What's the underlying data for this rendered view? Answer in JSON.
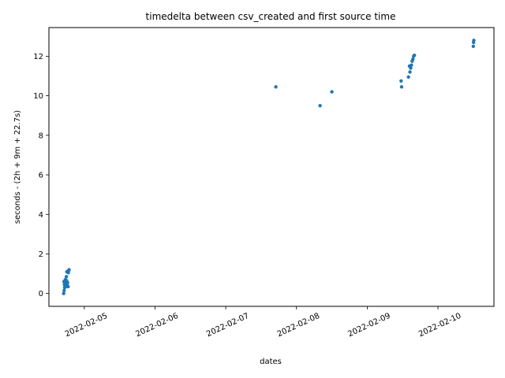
{
  "chart_data": {
    "type": "scatter",
    "title": "timedelta between csv_created and first source time",
    "xlabel": "dates",
    "ylabel": "seconds - (2h + 9m + 22.7s)",
    "x_ticks": [
      "2022-02-05",
      "2022-02-06",
      "2022-02-07",
      "2022-02-08",
      "2022-02-09",
      "2022-02-10"
    ],
    "y_ticks": [
      0,
      2,
      4,
      6,
      8,
      10,
      12
    ],
    "xlim": [
      "2022-02-04T12:00",
      "2022-02-10T19:00"
    ],
    "ylim": [
      -0.65,
      13.45
    ],
    "grid": false,
    "color": "#1f77b4",
    "series": [
      {
        "x": [
          "2022-02-04T17:00",
          "2022-02-04T17:10",
          "2022-02-04T17:20",
          "2022-02-04T17:30",
          "2022-02-04T17:15",
          "2022-02-04T17:25",
          "2022-02-04T17:40",
          "2022-02-04T17:50",
          "2022-02-04T18:00",
          "2022-02-04T17:35",
          "2022-02-04T17:45",
          "2022-02-04T18:10",
          "2022-02-04T18:20",
          "2022-02-04T18:30",
          "2022-02-04T17:55",
          "2022-02-04T18:05",
          "2022-02-04T18:40",
          "2022-02-04T18:50",
          "2022-02-04T18:35",
          "2022-02-04T17:05",
          "2022-02-04T18:15",
          "2022-02-07T17:00",
          "2022-02-08T08:00",
          "2022-02-08T12:00",
          "2022-02-09T11:30",
          "2022-02-09T11:40",
          "2022-02-09T14:00",
          "2022-02-09T14:30",
          "2022-02-09T14:45",
          "2022-02-09T15:00",
          "2022-02-09T15:15",
          "2022-02-09T15:30",
          "2022-02-09T15:45",
          "2022-02-09T16:00",
          "2022-02-09T14:20",
          "2022-02-10T12:00",
          "2022-02-10T12:05",
          "2022-02-10T12:10"
        ],
        "y": [
          0.0,
          0.15,
          0.3,
          0.4,
          0.45,
          0.5,
          0.55,
          0.6,
          0.65,
          0.7,
          0.5,
          0.45,
          0.55,
          0.35,
          0.85,
          1.1,
          1.15,
          1.2,
          1.05,
          0.6,
          0.35,
          10.45,
          9.5,
          10.2,
          10.75,
          10.45,
          10.95,
          11.2,
          11.4,
          11.55,
          11.75,
          11.85,
          12.0,
          12.05,
          11.5,
          12.5,
          12.7,
          12.8
        ]
      }
    ]
  }
}
